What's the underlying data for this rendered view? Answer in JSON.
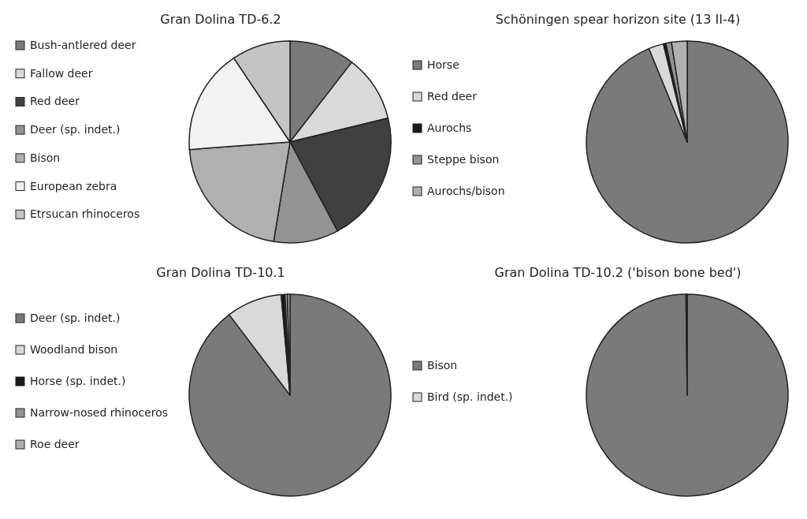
{
  "chart_data": [
    {
      "type": "pie",
      "title": "Gran Dolina TD-6.2",
      "legend": "left",
      "categories": [
        "Bush-antlered deer",
        "Fallow deer",
        "Red deer",
        "Deer (sp. indet.)",
        "Bison",
        "European zebra",
        "Etrsucan rhinoceros"
      ],
      "values": [
        10.5,
        10.7,
        21,
        10.4,
        21.2,
        16.8,
        9.4
      ],
      "colors": [
        "#7a7a7a",
        "#d9d9d9",
        "#404040",
        "#939393",
        "#b0b0b0",
        "#f2f2f2",
        "#c4c4c4"
      ]
    },
    {
      "type": "pie",
      "title": "Schöningen spear horizon site (13 II-4)",
      "legend": "left",
      "categories": [
        "Horse",
        "Red deer",
        "Aurochs",
        "Steppe bison",
        "Aurochs/bison"
      ],
      "values": [
        93.8,
        2.4,
        0.4,
        0.9,
        2.5
      ],
      "colors": [
        "#7a7a7a",
        "#d9d9d9",
        "#1a1a1a",
        "#939393",
        "#b0b0b0"
      ]
    },
    {
      "type": "pie",
      "title": "Gran Dolina TD-10.1",
      "legend": "left",
      "categories": [
        "Deer (sp. indet.)",
        "Woodland bison",
        "Horse (sp. indet.)",
        "Narrow-nosed rhinoceros",
        "Roe deer"
      ],
      "values": [
        89.7,
        8.9,
        0.6,
        0.4,
        0.4
      ],
      "colors": [
        "#7a7a7a",
        "#d9d9d9",
        "#1a1a1a",
        "#939393",
        "#b0b0b0"
      ]
    },
    {
      "type": "pie",
      "title": "Gran Dolina TD-10.2 ('bison bone bed')",
      "legend": "left",
      "categories": [
        "Bison",
        "Bird (sp. indet.)"
      ],
      "values": [
        99.8,
        0.2
      ],
      "colors": [
        "#7a7a7a",
        "#d9d9d9"
      ]
    }
  ]
}
